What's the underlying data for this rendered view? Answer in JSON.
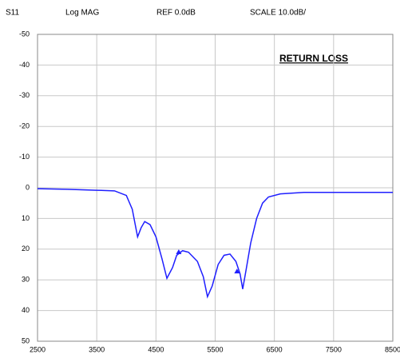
{
  "header": {
    "param": "S11",
    "format": "Log MAG",
    "ref": "REF 0.0dB",
    "scale": "SCALE 10.0dB/"
  },
  "chart_data": {
    "type": "line",
    "annotation": "RETURN LOSS",
    "x": [
      2500,
      3000,
      3500,
      3800,
      4000,
      4100,
      4150,
      4190,
      4250,
      4310,
      4400,
      4500,
      4600,
      4685,
      4780,
      4850,
      4950,
      5050,
      5200,
      5300,
      5370,
      5450,
      5550,
      5650,
      5750,
      5850,
      5920,
      5965,
      6020,
      6100,
      6200,
      6300,
      6400,
      6600,
      7000,
      8500
    ],
    "series": [
      {
        "name": "S11",
        "color": "#1f1fff",
        "values": [
          0.3,
          0.5,
          0.8,
          1,
          2.5,
          7,
          12,
          16,
          13,
          11,
          12,
          16,
          23,
          29.5,
          26,
          22,
          20.5,
          21,
          24,
          29,
          35.5,
          32,
          25,
          22,
          21.6,
          24,
          28,
          33,
          27,
          18,
          10,
          5,
          3,
          2,
          1.5,
          1.5
        ]
      }
    ],
    "markers": [
      {
        "x": 4885,
        "y": 21.6
      },
      {
        "x": 5869,
        "y": 27.9
      }
    ],
    "xlim": [
      2500,
      8500
    ],
    "xticks": [
      2500,
      3500,
      4500,
      5500,
      6500,
      7500,
      8500
    ],
    "ylim": [
      -50,
      50
    ],
    "yticks": [
      -50,
      -40,
      -30,
      -20,
      -10,
      0,
      10,
      20,
      30,
      40,
      50
    ],
    "y_inverted": true,
    "grid": true
  }
}
